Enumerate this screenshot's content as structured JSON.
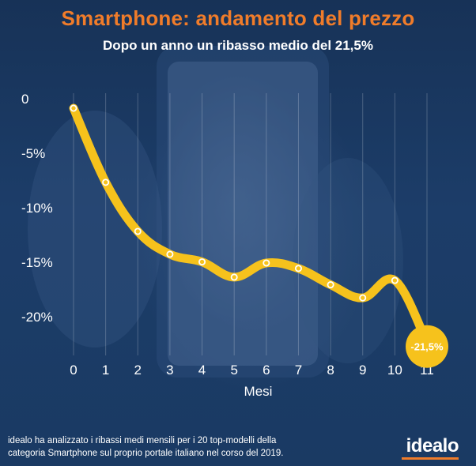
{
  "header": {
    "title": "Smartphone: andamento del prezzo",
    "subtitle": "Dopo un anno un ribasso medio del 21,5%"
  },
  "chart_data": {
    "type": "line",
    "title": "Smartphone: andamento del prezzo",
    "subtitle": "Dopo un anno un ribasso medio del 21,5%",
    "xlabel": "Mesi",
    "ylabel": "",
    "x": [
      0,
      1,
      2,
      3,
      4,
      5,
      6,
      7,
      8,
      9,
      10,
      11
    ],
    "x_tick_labels": [
      "0",
      "1",
      "2",
      "3",
      "4",
      "5",
      "6",
      "7",
      "8",
      "9",
      "10",
      "11"
    ],
    "values": [
      0,
      -6.8,
      -11.3,
      -13.4,
      -14.1,
      -15.5,
      -14.2,
      -14.7,
      -16.2,
      -17.4,
      -15.8,
      -21.5
    ],
    "y_tick_values": [
      0,
      -5,
      -10,
      -15,
      -20
    ],
    "y_tick_labels": [
      "0",
      "-5%",
      "-10%",
      "-15%",
      "-20%"
    ],
    "ylim": [
      -23,
      1
    ],
    "xlim": [
      0,
      11
    ],
    "grid": "vertical",
    "line_color": "#f6c21c",
    "marker_color": "#ffffff",
    "end_label": "-21,5%"
  },
  "footer": {
    "note_line1": "idealo ha analizzato i ribassi medi mensili per i 20 top-modelli della",
    "note_line2": "categoria Smartphone sul proprio portale italiano nel corso del 2019.",
    "brand": "idealo"
  },
  "colors": {
    "background": "#1b3a63",
    "title": "#f07c2a",
    "accent": "#f6c21c",
    "text": "#ffffff"
  }
}
